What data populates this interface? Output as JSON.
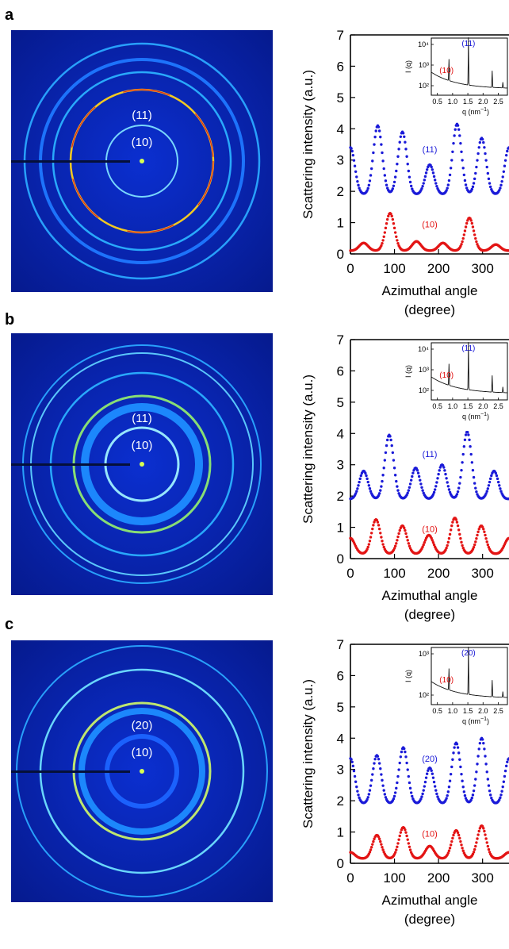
{
  "panels": [
    {
      "letter": "a",
      "rings": [
        "(11)",
        "(10)"
      ],
      "inset": {
        "ylabel": "I (q)",
        "xlabel": "q (nm",
        "xlabel_sup": "−1",
        "xlabel_close": ")",
        "x_ticks": [
          "0.5",
          "1.0",
          "1.5",
          "2.0",
          "2.5"
        ],
        "y_ticks": [
          "10²",
          "10³",
          "10⁴"
        ],
        "labels": [
          {
            "text": "(11)",
            "color": "#1515d6"
          },
          {
            "text": "(10)",
            "color": "#e01010"
          }
        ]
      }
    },
    {
      "letter": "b",
      "rings": [
        "(11)",
        "(10)"
      ],
      "inset": {
        "ylabel": "I (q)",
        "xlabel": "q (nm",
        "xlabel_sup": "−1",
        "xlabel_close": ")",
        "x_ticks": [
          "0.5",
          "1.0",
          "1.5",
          "2.0",
          "2.5"
        ],
        "y_ticks": [
          "10²",
          "10³",
          "10⁴"
        ],
        "labels": [
          {
            "text": "(11)",
            "color": "#1515d6"
          },
          {
            "text": "(10)",
            "color": "#e01010"
          }
        ]
      }
    },
    {
      "letter": "c",
      "rings": [
        "(20)",
        "(10)"
      ],
      "inset": {
        "ylabel": "I (q)",
        "xlabel": "q (nm",
        "xlabel_sup": "−1",
        "xlabel_close": ")",
        "x_ticks": [
          "0.5",
          "1.0",
          "1.5",
          "2.0",
          "2.5"
        ],
        "y_ticks": [
          "10²",
          "10³"
        ],
        "labels": [
          {
            "text": "(20)",
            "color": "#1515d6"
          },
          {
            "text": "(10)",
            "color": "#e01010"
          }
        ]
      }
    }
  ],
  "chart_data": [
    {
      "type": "scatter",
      "panel": "a",
      "ylabel": "Scattering intensity (a.u.)",
      "xlabel": "Azimuthal angle",
      "xlabel2": "(degree)",
      "xlim": [
        0,
        360
      ],
      "ylim": [
        0,
        7
      ],
      "x_ticks": [
        0,
        100,
        200,
        300
      ],
      "y_ticks": [
        0,
        1,
        2,
        3,
        4,
        5,
        6,
        7
      ],
      "series": [
        {
          "name": "(11)",
          "color": "#1a1ad8",
          "baseline": 1.9,
          "peaks": [
            [
              0,
              2.65
            ],
            [
              62,
              4.1
            ],
            [
              118,
              3.9
            ],
            [
              180,
              2.85
            ],
            [
              242,
              4.15
            ],
            [
              298,
              3.7
            ],
            [
              360,
              2.65
            ]
          ]
        },
        {
          "name": "(10)",
          "color": "#e31414",
          "baseline": 0.1,
          "peaks": [
            [
              30,
              0.35
            ],
            [
              90,
              1.3
            ],
            [
              150,
              0.4
            ],
            [
              210,
              0.35
            ],
            [
              270,
              1.15
            ],
            [
              330,
              0.3
            ]
          ]
        }
      ]
    },
    {
      "type": "scatter",
      "panel": "b",
      "ylabel": "Scattering intensity (a.u.)",
      "xlabel": "Azimuthal angle",
      "xlabel2": "(degree)",
      "xlim": [
        0,
        360
      ],
      "ylim": [
        0,
        7
      ],
      "x_ticks": [
        0,
        100,
        200,
        300
      ],
      "y_ticks": [
        0,
        1,
        2,
        3,
        4,
        5,
        6,
        7
      ],
      "series": [
        {
          "name": "(11)",
          "color": "#1a1ad8",
          "baseline": 1.9,
          "peaks": [
            [
              30,
              2.8
            ],
            [
              88,
              3.95
            ],
            [
              148,
              2.9
            ],
            [
              208,
              3.0
            ],
            [
              265,
              4.05
            ],
            [
              326,
              2.8
            ]
          ]
        },
        {
          "name": "(10)",
          "color": "#e31414",
          "baseline": 0.15,
          "peaks": [
            [
              58,
              1.25
            ],
            [
              118,
              1.05
            ],
            [
              178,
              0.75
            ],
            [
              237,
              1.3
            ],
            [
              297,
              1.05
            ],
            [
              360,
              0.65
            ]
          ]
        }
      ]
    },
    {
      "type": "scatter",
      "panel": "c",
      "ylabel": "Scattering intensity (a.u.)",
      "xlabel": "Azimuthal angle",
      "xlabel2": "(degree)",
      "xlim": [
        0,
        360
      ],
      "ylim": [
        0,
        7
      ],
      "x_ticks": [
        0,
        100,
        200,
        300
      ],
      "y_ticks": [
        0,
        1,
        2,
        3,
        4,
        5,
        6,
        7
      ],
      "series": [
        {
          "name": "(20)",
          "color": "#1a1ad8",
          "baseline": 1.9,
          "peaks": [
            [
              0,
              2.5
            ],
            [
              60,
              3.45
            ],
            [
              120,
              3.7
            ],
            [
              180,
              3.05
            ],
            [
              240,
              3.85
            ],
            [
              298,
              4.0
            ],
            [
              360,
              2.75
            ]
          ]
        },
        {
          "name": "(10)",
          "color": "#e31414",
          "baseline": 0.15,
          "peaks": [
            [
              60,
              0.9
            ],
            [
              120,
              1.15
            ],
            [
              180,
              0.55
            ],
            [
              240,
              1.05
            ],
            [
              298,
              1.2
            ],
            [
              360,
              0.35
            ]
          ]
        }
      ]
    }
  ]
}
